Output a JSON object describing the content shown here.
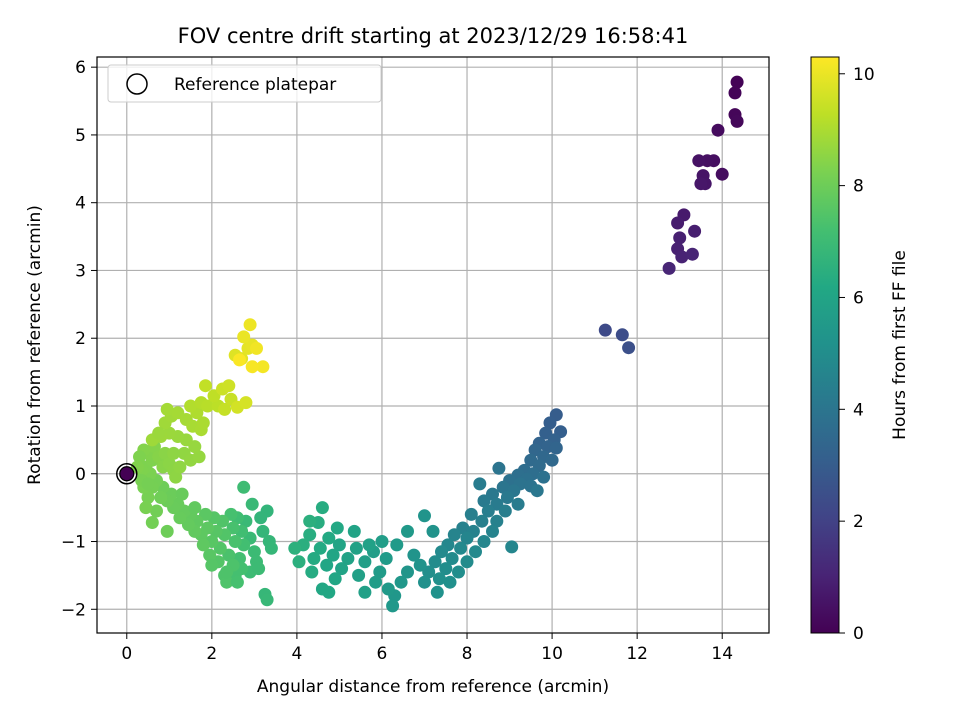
{
  "chart_data": {
    "type": "scatter",
    "title": "FOV centre drift starting at 2023/12/29 16:58:41",
    "xlabel": "Angular distance from reference (arcmin)",
    "ylabel": "Rotation from reference (arcmin)",
    "xlim": [
      -0.7,
      15.1
    ],
    "ylim": [
      -2.35,
      6.15
    ],
    "xticks": [
      0,
      2,
      4,
      6,
      8,
      10,
      12,
      14
    ],
    "yticks": [
      -2,
      -1,
      0,
      1,
      2,
      3,
      4,
      5,
      6
    ],
    "xtick_labels": [
      "0",
      "2",
      "4",
      "6",
      "8",
      "10",
      "12",
      "14"
    ],
    "ytick_labels": [
      "−2",
      "−1",
      "0",
      "1",
      "2",
      "3",
      "4",
      "5",
      "6"
    ],
    "grid": true,
    "legend": {
      "placement": "top-left",
      "entries": [
        "Reference platepar"
      ]
    },
    "reference_point": {
      "x": 0,
      "y": 0
    },
    "colorbar": {
      "label": "Hours from first FF file",
      "colormap": "viridis",
      "range": [
        0,
        10.3
      ],
      "ticks": [
        0,
        2,
        4,
        6,
        8,
        10
      ],
      "tick_labels": [
        "0",
        "2",
        "4",
        "6",
        "8",
        "10"
      ]
    },
    "points": [
      [
        14.35,
        5.78,
        0.05
      ],
      [
        14.3,
        5.62,
        0.1
      ],
      [
        14.3,
        5.3,
        0.15
      ],
      [
        14.35,
        5.2,
        0.2
      ],
      [
        13.9,
        5.07,
        0.3
      ],
      [
        14.0,
        4.42,
        0.35
      ],
      [
        13.8,
        4.62,
        0.4
      ],
      [
        13.65,
        4.62,
        0.45
      ],
      [
        13.45,
        4.62,
        0.5
      ],
      [
        13.55,
        4.4,
        0.55
      ],
      [
        13.6,
        4.28,
        0.6
      ],
      [
        13.5,
        4.28,
        0.65
      ],
      [
        13.1,
        3.82,
        0.75
      ],
      [
        12.95,
        3.7,
        0.8
      ],
      [
        13.35,
        3.58,
        0.85
      ],
      [
        13.0,
        3.48,
        0.9
      ],
      [
        12.95,
        3.32,
        0.95
      ],
      [
        13.05,
        3.2,
        1.0
      ],
      [
        13.3,
        3.24,
        1.05
      ],
      [
        12.75,
        3.03,
        1.1
      ],
      [
        11.25,
        2.12,
        2.3
      ],
      [
        11.65,
        2.05,
        2.4
      ],
      [
        11.8,
        1.86,
        2.5
      ],
      [
        10.1,
        0.87,
        3.0
      ],
      [
        9.95,
        0.75,
        3.05
      ],
      [
        10.2,
        0.62,
        3.1
      ],
      [
        9.85,
        0.6,
        3.15
      ],
      [
        10.05,
        0.5,
        3.2
      ],
      [
        9.7,
        0.45,
        3.25
      ],
      [
        9.9,
        0.4,
        3.3
      ],
      [
        10.1,
        0.38,
        3.35
      ],
      [
        9.6,
        0.35,
        3.4
      ],
      [
        9.8,
        0.25,
        3.45
      ],
      [
        10.0,
        0.2,
        3.5
      ],
      [
        9.5,
        0.2,
        3.55
      ],
      [
        9.7,
        0.12,
        3.6
      ],
      [
        9.35,
        0.05,
        3.65
      ],
      [
        9.55,
        0.0,
        3.7
      ],
      [
        9.2,
        -0.02,
        3.75
      ],
      [
        9.4,
        -0.08,
        3.8
      ],
      [
        9.8,
        -0.05,
        3.82
      ],
      [
        9.0,
        -0.1,
        3.85
      ],
      [
        9.25,
        -0.15,
        3.9
      ],
      [
        9.5,
        -0.18,
        3.92
      ],
      [
        8.75,
        0.08,
        3.95
      ],
      [
        8.85,
        -0.2,
        4.0
      ],
      [
        9.1,
        -0.25,
        4.05
      ],
      [
        9.65,
        -0.25,
        4.07
      ],
      [
        8.6,
        -0.3,
        4.1
      ],
      [
        8.95,
        -0.35,
        4.15
      ],
      [
        8.4,
        -0.4,
        4.2
      ],
      [
        8.7,
        -0.45,
        4.25
      ],
      [
        9.2,
        -0.45,
        4.28
      ],
      [
        8.3,
        -0.15,
        4.3
      ],
      [
        8.5,
        -0.55,
        4.35
      ],
      [
        8.9,
        -0.55,
        4.38
      ],
      [
        8.1,
        -0.6,
        4.4
      ],
      [
        8.35,
        -0.7,
        4.45
      ],
      [
        8.7,
        -0.7,
        4.48
      ],
      [
        7.9,
        -0.8,
        4.5
      ],
      [
        8.15,
        -0.85,
        4.55
      ],
      [
        8.6,
        -0.85,
        4.58
      ],
      [
        7.7,
        -0.9,
        4.6
      ],
      [
        8.0,
        -0.95,
        4.65
      ],
      [
        8.4,
        -1.0,
        4.68
      ],
      [
        9.05,
        -1.08,
        4.7
      ],
      [
        7.55,
        -1.05,
        4.75
      ],
      [
        7.85,
        -1.1,
        4.8
      ],
      [
        8.2,
        -1.15,
        4.82
      ],
      [
        7.4,
        -1.15,
        4.85
      ],
      [
        7.65,
        -1.25,
        4.9
      ],
      [
        8.0,
        -1.3,
        4.92
      ],
      [
        7.25,
        -1.3,
        4.95
      ],
      [
        7.5,
        -1.4,
        5.0
      ],
      [
        7.8,
        -1.45,
        5.02
      ],
      [
        7.1,
        -1.45,
        5.05
      ],
      [
        7.35,
        -1.55,
        5.1
      ],
      [
        7.6,
        -1.6,
        5.12
      ],
      [
        7.0,
        -1.6,
        5.15
      ],
      [
        7.3,
        -1.75,
        5.2
      ],
      [
        6.9,
        -1.35,
        5.22
      ],
      [
        7.2,
        -0.85,
        5.25
      ],
      [
        7.0,
        -0.62,
        5.28
      ],
      [
        6.75,
        -1.2,
        5.3
      ],
      [
        6.6,
        -1.45,
        5.35
      ],
      [
        6.45,
        -1.6,
        5.4
      ],
      [
        6.3,
        -1.8,
        5.42
      ],
      [
        6.25,
        -1.95,
        5.45
      ],
      [
        6.15,
        -1.7,
        5.5
      ],
      [
        6.6,
        -0.85,
        5.52
      ],
      [
        6.35,
        -1.05,
        5.55
      ],
      [
        6.1,
        -1.25,
        5.6
      ],
      [
        5.95,
        -1.45,
        5.62
      ],
      [
        5.85,
        -1.6,
        5.65
      ],
      [
        6.0,
        -1.0,
        5.7
      ],
      [
        5.8,
        -1.15,
        5.72
      ],
      [
        5.6,
        -1.3,
        5.75
      ],
      [
        5.45,
        -1.5,
        5.8
      ],
      [
        5.6,
        -1.75,
        5.82
      ],
      [
        5.7,
        -1.05,
        5.85
      ],
      [
        5.4,
        -1.1,
        5.88
      ],
      [
        5.2,
        -1.25,
        5.9
      ],
      [
        5.05,
        -1.4,
        5.95
      ],
      [
        5.35,
        -0.85,
        5.97
      ],
      [
        5.0,
        -1.05,
        6.0
      ],
      [
        4.85,
        -1.2,
        6.05
      ],
      [
        4.7,
        -1.35,
        6.08
      ],
      [
        4.9,
        -1.55,
        6.1
      ],
      [
        4.75,
        -1.75,
        6.12
      ],
      [
        4.6,
        -1.7,
        6.15
      ],
      [
        4.95,
        -0.8,
        6.2
      ],
      [
        4.75,
        -0.95,
        6.22
      ],
      [
        4.55,
        -1.1,
        6.25
      ],
      [
        4.4,
        -1.25,
        6.28
      ],
      [
        4.35,
        -1.45,
        6.3
      ],
      [
        4.6,
        -0.5,
        6.35
      ],
      [
        4.5,
        -0.72,
        6.38
      ],
      [
        4.3,
        -0.9,
        6.4
      ],
      [
        4.15,
        -1.05,
        6.45
      ],
      [
        4.05,
        -1.3,
        6.48
      ],
      [
        4.3,
        -0.7,
        6.5
      ],
      [
        3.95,
        -1.1,
        6.55
      ],
      [
        3.3,
        -0.55,
        6.7
      ],
      [
        3.15,
        -0.65,
        6.72
      ],
      [
        3.2,
        -0.85,
        6.75
      ],
      [
        3.35,
        -1.0,
        6.78
      ],
      [
        3.4,
        -1.1,
        6.8
      ],
      [
        3.25,
        -1.78,
        6.82
      ],
      [
        3.3,
        -1.86,
        6.85
      ],
      [
        2.95,
        -0.45,
        6.9
      ],
      [
        2.8,
        -0.7,
        6.92
      ],
      [
        2.9,
        -0.95,
        6.95
      ],
      [
        3.0,
        -1.15,
        6.98
      ],
      [
        3.05,
        -1.3,
        7.0
      ],
      [
        2.9,
        -1.45,
        7.02
      ],
      [
        2.75,
        -0.2,
        7.05
      ],
      [
        2.6,
        -0.65,
        7.1
      ],
      [
        2.7,
        -0.85,
        7.12
      ],
      [
        2.75,
        -1.05,
        7.15
      ],
      [
        2.65,
        -1.25,
        7.18
      ],
      [
        2.7,
        -1.4,
        7.2
      ],
      [
        2.55,
        -1.5,
        7.22
      ],
      [
        2.45,
        -0.6,
        7.25
      ],
      [
        2.5,
        -0.8,
        7.28
      ],
      [
        2.55,
        -1.0,
        7.3
      ],
      [
        2.4,
        -1.2,
        7.35
      ],
      [
        2.5,
        -1.35,
        7.38
      ],
      [
        2.3,
        -1.5,
        7.4
      ],
      [
        2.35,
        -1.6,
        7.42
      ],
      [
        2.25,
        -0.7,
        7.45
      ],
      [
        2.3,
        -0.9,
        7.48
      ],
      [
        2.2,
        -1.1,
        7.5
      ],
      [
        2.15,
        -1.3,
        7.52
      ],
      [
        2.05,
        -0.65,
        7.55
      ],
      [
        2.1,
        -0.85,
        7.58
      ],
      [
        2.0,
        -1.0,
        7.6
      ],
      [
        1.95,
        -1.2,
        7.62
      ],
      [
        1.85,
        -0.6,
        7.65
      ],
      [
        1.9,
        -0.8,
        7.68
      ],
      [
        1.75,
        -0.9,
        7.7
      ],
      [
        1.8,
        -1.05,
        7.72
      ],
      [
        1.65,
        -0.7,
        7.75
      ],
      [
        1.6,
        -0.85,
        7.78
      ],
      [
        1.5,
        -0.6,
        7.8
      ],
      [
        1.45,
        -0.75,
        7.82
      ],
      [
        1.35,
        -0.55,
        7.85
      ],
      [
        1.25,
        -0.65,
        7.88
      ],
      [
        1.2,
        -0.45,
        7.9
      ],
      [
        1.1,
        -0.5,
        7.92
      ],
      [
        1.05,
        -0.3,
        7.95
      ],
      [
        0.95,
        -0.4,
        7.98
      ],
      [
        0.95,
        -0.85,
        8.0
      ],
      [
        0.85,
        -0.2,
        8.02
      ],
      [
        0.8,
        -0.35,
        8.05
      ],
      [
        0.7,
        -0.55,
        8.08
      ],
      [
        0.6,
        -0.72,
        8.1
      ],
      [
        0.7,
        -0.1,
        8.12
      ],
      [
        0.6,
        -0.2,
        8.15
      ],
      [
        0.5,
        -0.35,
        8.18
      ],
      [
        0.45,
        -0.5,
        8.2
      ],
      [
        0.4,
        -0.2,
        8.22
      ],
      [
        0.55,
        0.0,
        8.25
      ],
      [
        0.45,
        0.1,
        8.28
      ],
      [
        0.35,
        0.05,
        8.3
      ],
      [
        0.6,
        0.2,
        8.32
      ],
      [
        0.5,
        0.3,
        8.35
      ],
      [
        0.4,
        0.35,
        8.38
      ],
      [
        0.65,
        0.4,
        8.4
      ],
      [
        0.75,
        0.25,
        8.42
      ],
      [
        0.85,
        0.1,
        8.45
      ],
      [
        0.9,
        0.3,
        8.48
      ],
      [
        1.0,
        0.15,
        8.5
      ],
      [
        1.1,
        0.05,
        8.52
      ],
      [
        1.15,
        -0.05,
        8.55
      ],
      [
        1.25,
        0.1,
        8.58
      ],
      [
        1.35,
        0.3,
        8.6
      ],
      [
        1.5,
        0.2,
        8.62
      ],
      [
        1.7,
        0.25,
        8.65
      ],
      [
        1.6,
        0.4,
        8.68
      ],
      [
        1.4,
        0.5,
        8.7
      ],
      [
        1.2,
        0.55,
        8.72
      ],
      [
        1.0,
        0.6,
        8.75
      ],
      [
        0.8,
        0.55,
        8.78
      ],
      [
        0.6,
        0.5,
        8.8
      ],
      [
        0.9,
        0.75,
        8.82
      ],
      [
        1.05,
        0.85,
        8.85
      ],
      [
        0.95,
        0.95,
        8.88
      ],
      [
        1.2,
        0.9,
        8.9
      ],
      [
        1.4,
        0.8,
        8.92
      ],
      [
        1.55,
        0.7,
        8.95
      ],
      [
        1.75,
        0.65,
        8.98
      ],
      [
        1.8,
        0.75,
        9.0
      ],
      [
        1.65,
        0.9,
        9.05
      ],
      [
        1.5,
        1.0,
        9.1
      ],
      [
        1.75,
        1.05,
        9.15
      ],
      [
        1.9,
        1.0,
        9.2
      ],
      [
        2.15,
        1.0,
        9.25
      ],
      [
        2.05,
        1.15,
        9.3
      ],
      [
        1.85,
        1.3,
        9.35
      ],
      [
        2.3,
        0.95,
        9.4
      ],
      [
        2.45,
        1.1,
        9.45
      ],
      [
        2.25,
        1.25,
        9.5
      ],
      [
        2.4,
        1.3,
        9.55
      ],
      [
        2.6,
        0.98,
        9.6
      ],
      [
        2.8,
        1.05,
        9.65
      ],
      [
        2.55,
        1.75,
        9.8
      ],
      [
        2.7,
        1.7,
        9.85
      ],
      [
        2.85,
        1.85,
        9.9
      ],
      [
        2.95,
        1.9,
        9.95
      ],
      [
        2.75,
        2.02,
        10.0
      ],
      [
        2.9,
        2.2,
        10.05
      ],
      [
        3.05,
        1.85,
        10.1
      ],
      [
        3.2,
        1.58,
        10.15
      ],
      [
        2.95,
        1.58,
        10.2
      ],
      [
        2.65,
        1.68,
        10.25
      ],
      [
        0.3,
        0.25,
        8.3
      ],
      [
        0.35,
        -0.1,
        8.2
      ],
      [
        0.25,
        0.1,
        8.35
      ],
      [
        0.5,
        -0.15,
        8.15
      ],
      [
        0.75,
        0.6,
        8.75
      ],
      [
        1.1,
        0.3,
        8.55
      ],
      [
        1.3,
        -0.3,
        7.9
      ],
      [
        1.6,
        -0.5,
        7.78
      ],
      [
        2.0,
        -1.35,
        7.55
      ],
      [
        2.6,
        -1.6,
        7.25
      ],
      [
        3.1,
        -1.4,
        7.0
      ],
      [
        2.35,
        -1.45,
        7.4
      ]
    ]
  }
}
